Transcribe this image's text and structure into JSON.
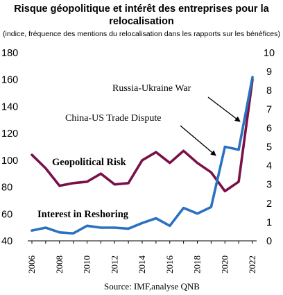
{
  "chart_data": {
    "type": "line",
    "title_line1": "Risque géopolitique et intérêt des entreprises pour la",
    "title_line2": "relocalisation",
    "subtitle": "(indice, fréquence des mentions du relocalisation dans les rapports sur les bénéfices)",
    "source": "Source: IMF,analyse QNB",
    "x": [
      2006,
      2007,
      2008,
      2009,
      2010,
      2011,
      2012,
      2013,
      2014,
      2015,
      2016,
      2017,
      2018,
      2019,
      2020,
      2021,
      2022
    ],
    "x_tick_labels": [
      "2006",
      "2008",
      "2010",
      "2012",
      "2014",
      "2016",
      "2018",
      "2020",
      "2022"
    ],
    "y_left_ticks": [
      "40",
      "60",
      "80",
      "100",
      "120",
      "140",
      "160",
      "180"
    ],
    "y_right_ticks": [
      "0",
      "1",
      "2",
      "3",
      "4",
      "5",
      "6",
      "7",
      "8",
      "9",
      "10"
    ],
    "ylim_left": [
      40,
      180
    ],
    "ylim_right": [
      0,
      10
    ],
    "grid": false,
    "series": [
      {
        "name": "Geopolitical Risk",
        "axis": "left",
        "color": "#7a1048",
        "values": [
          104,
          94,
          81,
          83,
          84,
          90,
          82,
          83,
          100,
          106,
          98,
          107,
          98,
          91,
          77,
          84,
          160
        ]
      },
      {
        "name": "Interest in Reshoring",
        "axis": "right",
        "color": "#2a72c0",
        "values": [
          0.55,
          0.7,
          0.45,
          0.4,
          0.8,
          0.7,
          0.7,
          0.65,
          0.95,
          1.2,
          0.8,
          1.75,
          1.45,
          1.8,
          5.0,
          4.85,
          8.7
        ]
      }
    ],
    "annotations": [
      {
        "text": "Russia-Ukraine War"
      },
      {
        "text": "China-US Trade Dispute"
      }
    ]
  }
}
